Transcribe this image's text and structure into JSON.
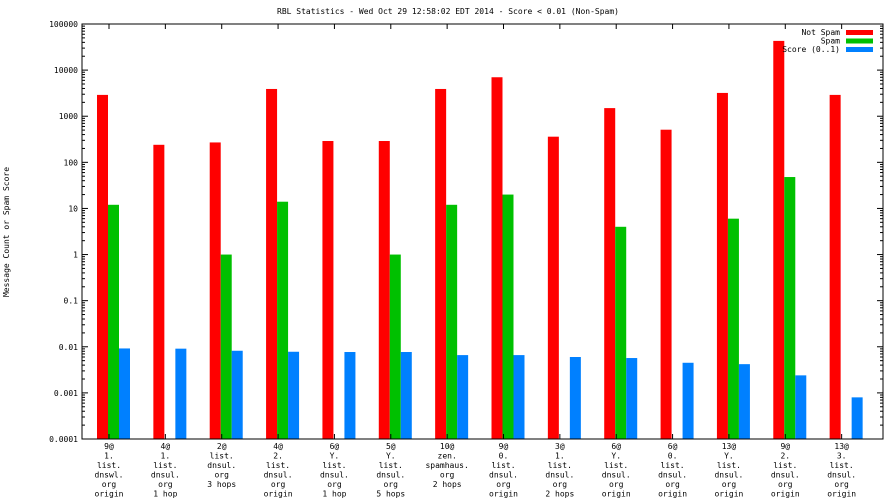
{
  "chart_data": {
    "type": "bar",
    "title": "RBL Statistics - Wed Oct 29 12:58:02 EDT 2014 - Score < 0.01 (Non-Spam)",
    "xlabel": "",
    "ylabel": "Message Count or Spam Score",
    "yscale": "log",
    "ylim": [
      0.0001,
      100000
    ],
    "yticks": [
      "0.0001",
      "0.001",
      "0.01",
      "0.1",
      "1",
      "10",
      "100",
      "1000",
      "10000",
      "100000"
    ],
    "legend_position": "top-right",
    "categories": [
      [
        "9@",
        "1.",
        "list.",
        "dnswl.",
        "org",
        "origin"
      ],
      [
        "4@",
        "1.",
        "list.",
        "dnsul.",
        "org",
        "1 hop"
      ],
      [
        "2@",
        "list.",
        "dnsul.",
        "org",
        "3 hops"
      ],
      [
        "4@",
        "2.",
        "list.",
        "dnsul.",
        "org",
        "origin"
      ],
      [
        "6@",
        "Y.",
        "list.",
        "dnsul.",
        "org",
        "1 hop"
      ],
      [
        "5@",
        "Y.",
        "list.",
        "dnsul.",
        "org",
        "5 hops"
      ],
      [
        "10@",
        "zen.",
        "spamhaus.",
        "org",
        "2 hops"
      ],
      [
        "9@",
        "0.",
        "list.",
        "dnsul.",
        "org",
        "origin"
      ],
      [
        "3@",
        "1.",
        "list.",
        "dnsul.",
        "org",
        "2 hops"
      ],
      [
        "6@",
        "Y.",
        "list.",
        "dnsul.",
        "org",
        "origin"
      ],
      [
        "6@",
        "0.",
        "list.",
        "dnsul.",
        "org",
        "origin"
      ],
      [
        "13@",
        "Y.",
        "list.",
        "dnsul.",
        "org",
        "origin"
      ],
      [
        "9@",
        "2.",
        "list.",
        "dnsul.",
        "org",
        "origin"
      ],
      [
        "13@",
        "3.",
        "list.",
        "dnsul.",
        "org",
        "origin"
      ]
    ],
    "series": [
      {
        "name": "Not Spam",
        "color": "#ff0000",
        "values": [
          2900,
          240,
          270,
          3900,
          290,
          290,
          3900,
          7000,
          360,
          1500,
          510,
          3200,
          43000,
          2900
        ]
      },
      {
        "name": "Spam",
        "color": "#00c000",
        "values": [
          12,
          null,
          1,
          14,
          null,
          1,
          12,
          20,
          null,
          4,
          null,
          6,
          48,
          null
        ]
      },
      {
        "name": "Score (0..1)",
        "color": "#0080ff",
        "values": [
          0.0092,
          0.0091,
          0.0082,
          0.0078,
          0.0077,
          0.0077,
          0.0066,
          0.0066,
          0.006,
          0.0057,
          0.0045,
          0.0042,
          0.0024,
          0.0008
        ]
      }
    ]
  }
}
